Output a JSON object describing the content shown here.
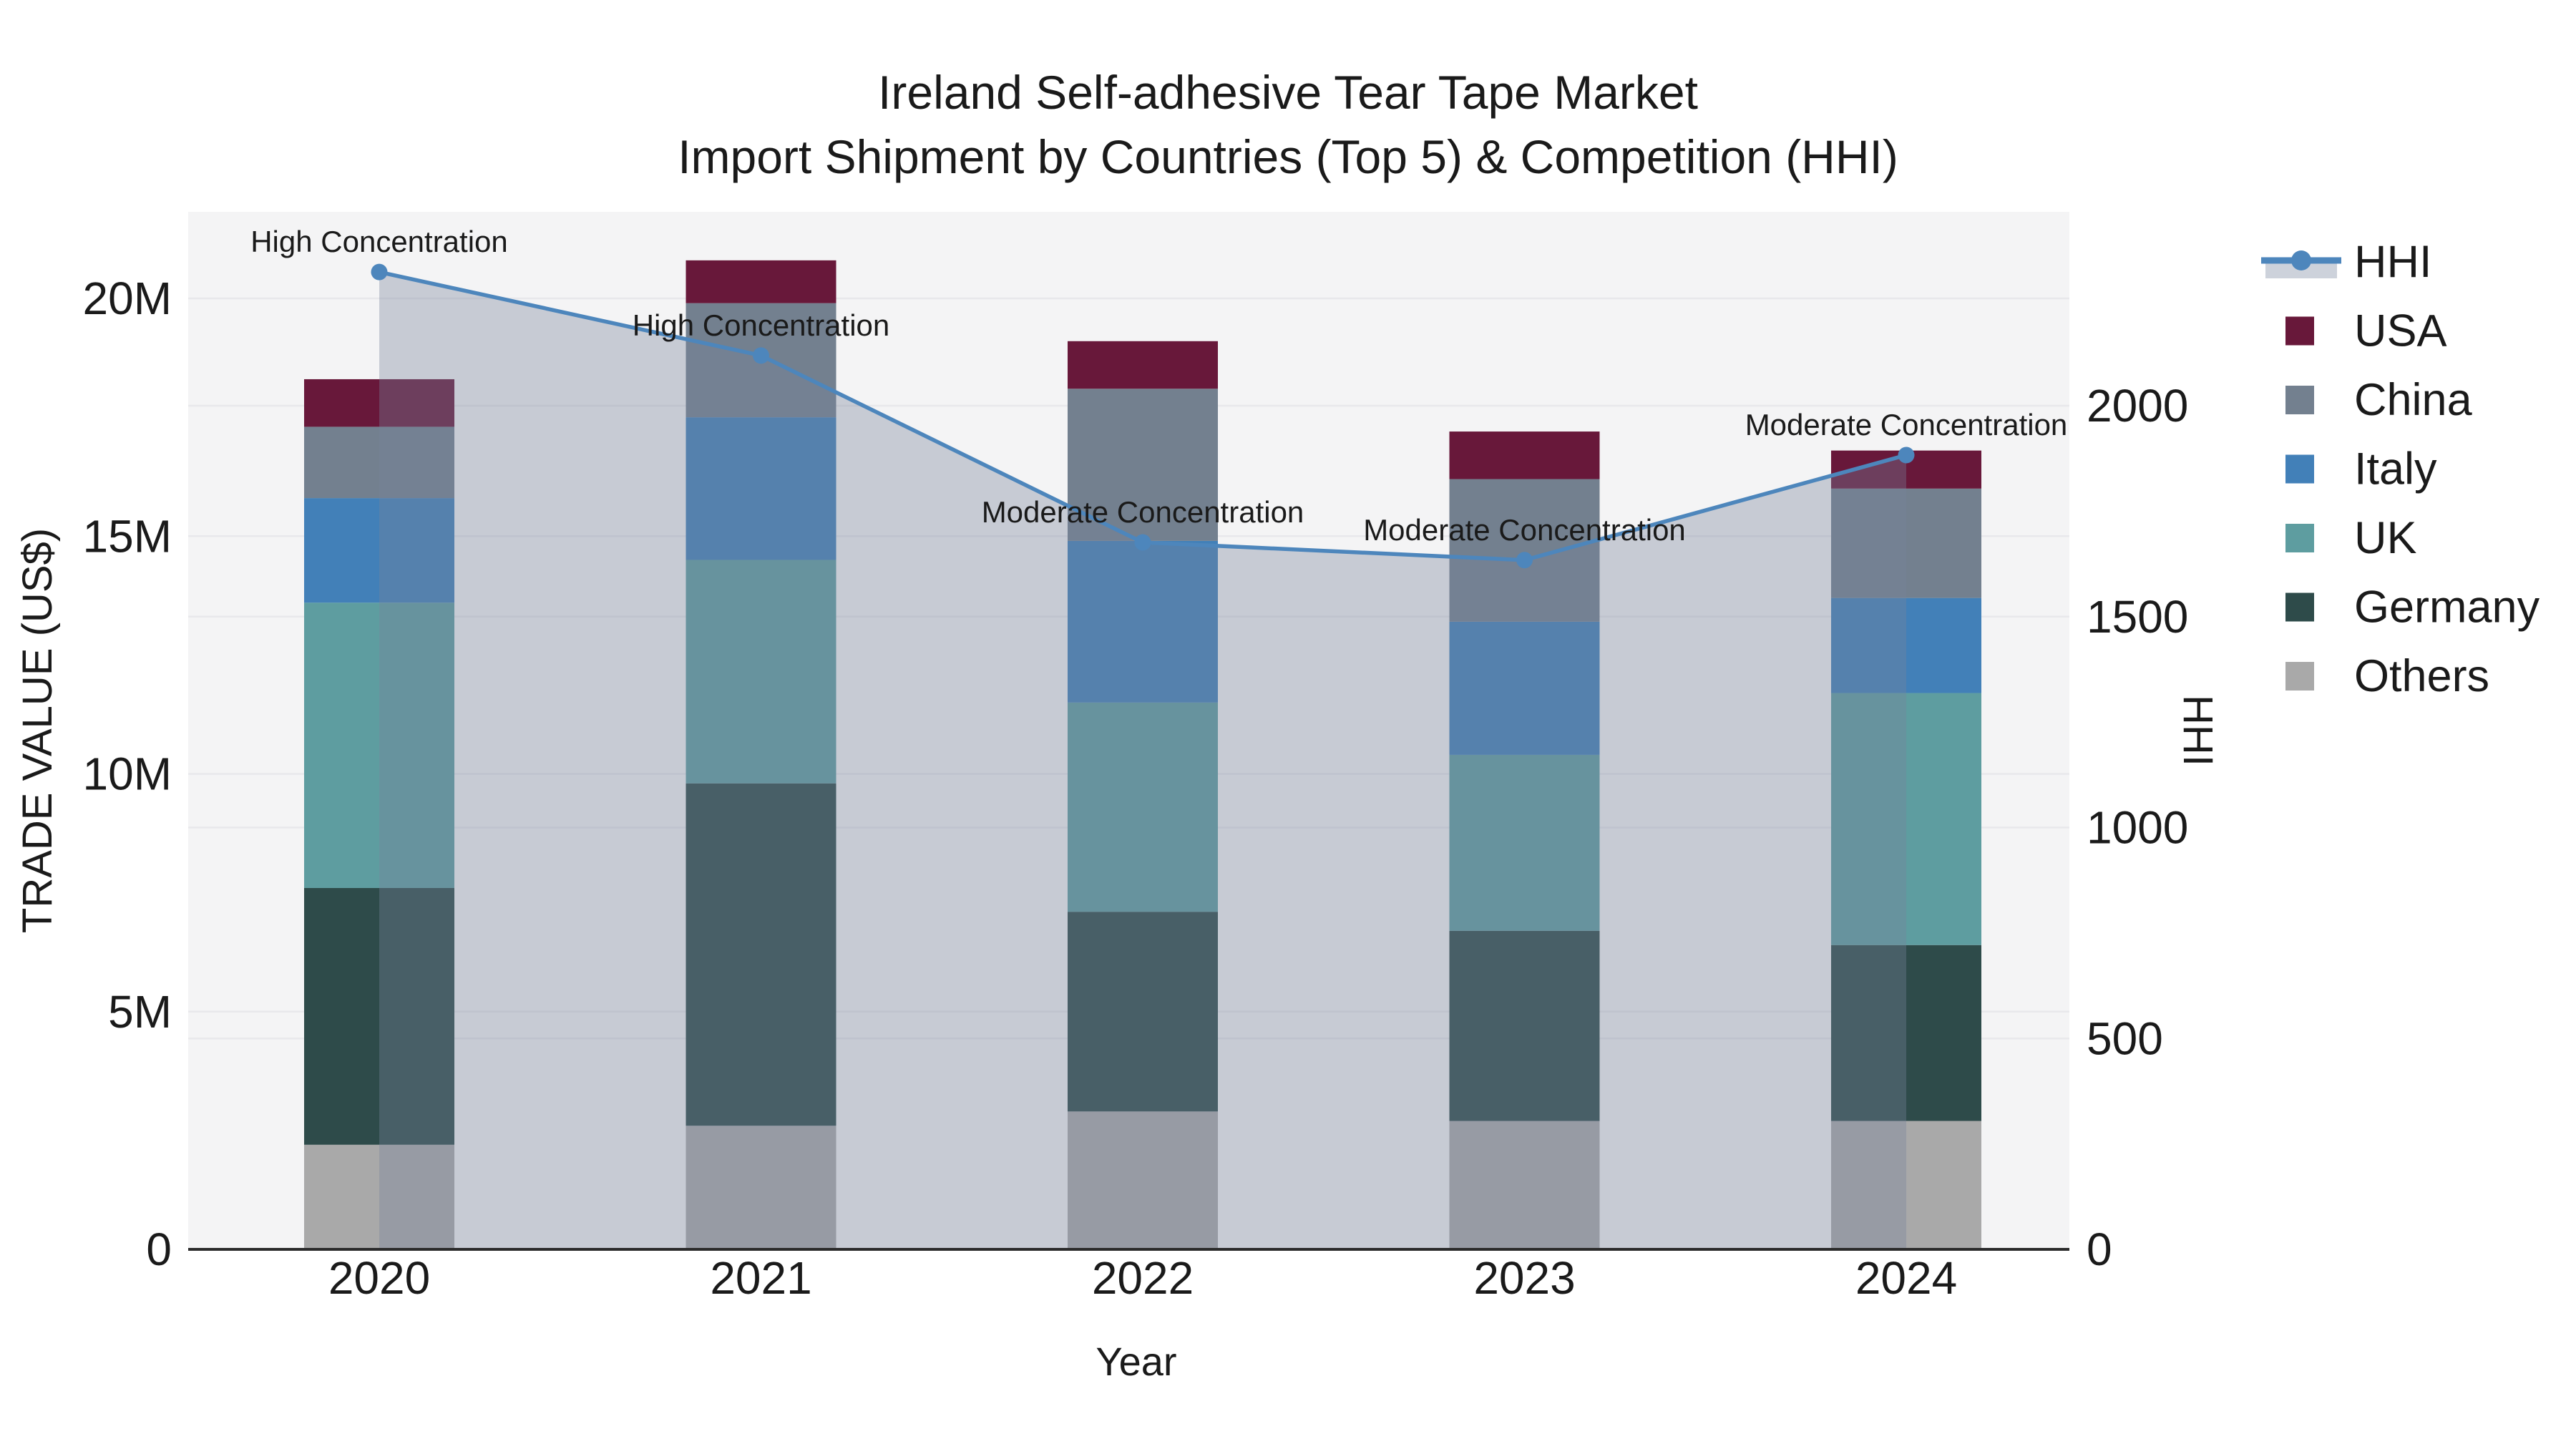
{
  "title": {
    "line1": "Ireland Self-adhesive Tear Tape Market",
    "line2": "Import Shipment by Countries (Top 5) & Competition (HHI)"
  },
  "chart_data": {
    "type": "bar",
    "subtype": "stacked-bars-with-line-area-on-secondary-axis",
    "title": "Ireland Self-adhesive Tear Tape Market",
    "subtitle": "Import Shipment by Countries (Top 5) & Competition (HHI)",
    "xlabel": "Year",
    "ylabel": "TRADE VALUE (US$)",
    "ylabel_right": "HHI",
    "categories": [
      "2020",
      "2021",
      "2022",
      "2023",
      "2024"
    ],
    "value_unit": "millions of US$",
    "stack_order_bottom_to_top": [
      "Others",
      "Germany",
      "UK",
      "Italy",
      "China",
      "USA"
    ],
    "series": [
      {
        "name": "USA",
        "color": "#68183A",
        "values": [
          1.0,
          0.9,
          1.0,
          1.0,
          0.8
        ]
      },
      {
        "name": "China",
        "color": "#73808F",
        "values": [
          1.5,
          2.4,
          3.2,
          3.0,
          2.3
        ]
      },
      {
        "name": "Italy",
        "color": "#4280B8",
        "values": [
          2.2,
          3.0,
          3.4,
          2.8,
          2.0
        ]
      },
      {
        "name": "UK",
        "color": "#5E9DA0",
        "values": [
          6.0,
          4.7,
          4.4,
          3.7,
          5.3
        ]
      },
      {
        "name": "Germany",
        "color": "#2E4B4A",
        "values": [
          5.4,
          7.2,
          4.2,
          4.0,
          3.7
        ]
      },
      {
        "name": "Others",
        "color": "#A9A9A9",
        "values": [
          2.2,
          2.6,
          2.9,
          2.7,
          2.7
        ]
      }
    ],
    "bar_totals": [
      18.3,
      20.8,
      19.1,
      17.2,
      16.8
    ],
    "line_series": {
      "name": "HHI",
      "axis": "right",
      "color": "#4D86BC",
      "area_fill": "rgba(119,131,156,0.36)",
      "values": [
        2317,
        2119,
        1676,
        1634,
        1883
      ]
    },
    "annotations": [
      {
        "category": "2020",
        "text": "High Concentration"
      },
      {
        "category": "2021",
        "text": "High Concentration"
      },
      {
        "category": "2022",
        "text": "Moderate Concentration"
      },
      {
        "category": "2023",
        "text": "Moderate Concentration"
      },
      {
        "category": "2024",
        "text": "Moderate Concentration"
      }
    ],
    "left_axis": {
      "tick_labels": [
        "0",
        "5M",
        "10M",
        "15M",
        "20M"
      ],
      "tick_values": [
        0,
        5,
        10,
        15,
        20
      ],
      "range": [
        0,
        21.8
      ]
    },
    "right_axis": {
      "tick_labels": [
        "0",
        "500",
        "1000",
        "1500",
        "2000"
      ],
      "tick_values": [
        0,
        500,
        1000,
        1500,
        2000
      ],
      "range": [
        0,
        2460
      ]
    },
    "legend": {
      "position": "right",
      "entries": [
        "HHI",
        "USA",
        "China",
        "Italy",
        "UK",
        "Germany",
        "Others"
      ]
    },
    "grid": true,
    "colors": {
      "plot_background": "#F4F4F5",
      "grid_line": "#E8E8EB",
      "axis_line": "#2B2B2B",
      "text": "#1A1A1A",
      "legend_band": "#CDD2DB"
    }
  }
}
